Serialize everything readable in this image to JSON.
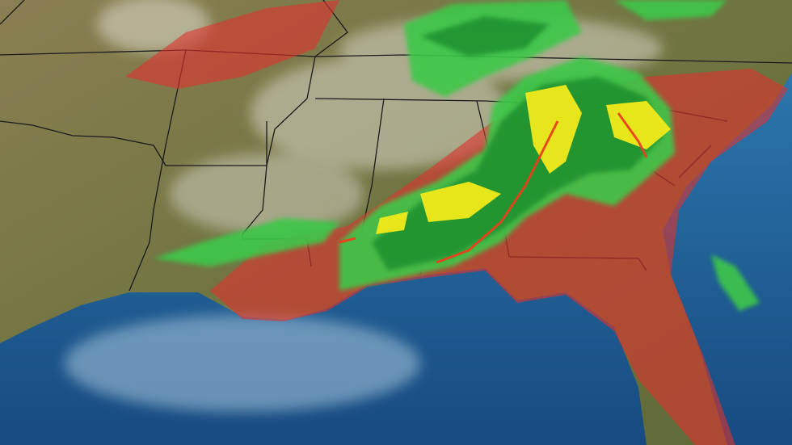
{
  "map": {
    "kind": "satellite-radar-composite",
    "region": "southeastern-united-states",
    "colors": {
      "ocean": "#1f5b92",
      "ocean_light": "#2f7fb3",
      "land": "#7d7a4a",
      "land_dark": "#5f6a36",
      "threat_area": "#e0322e",
      "radar_light": "#3cc84a",
      "radar_medium": "#1f8f2e",
      "radar_heavy": "#f2ea1a",
      "radar_intense": "#e8401c",
      "border": "#1a1a1a"
    },
    "layers": [
      "satellite",
      "state-borders",
      "severe-threat-areas",
      "radar-precipitation"
    ]
  }
}
